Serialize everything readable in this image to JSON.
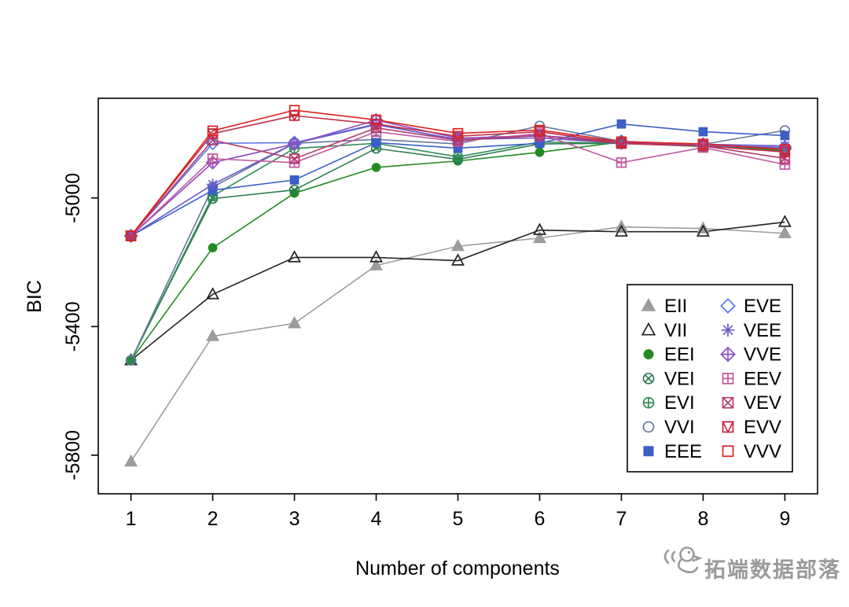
{
  "watermark": {
    "text": "拓端数据部落"
  },
  "chart_data": {
    "type": "line",
    "title": "",
    "xlabel": "Number of components",
    "ylabel": "BIC",
    "x": [
      1,
      2,
      3,
      4,
      5,
      6,
      7,
      8,
      9
    ],
    "xticks": [
      1,
      2,
      3,
      4,
      5,
      6,
      7,
      8,
      9
    ],
    "yticks": [
      -5800,
      -5400,
      -5000
    ],
    "xlim": [
      0.6,
      9.4
    ],
    "ylim": [
      -5920,
      -4690
    ],
    "grid": false,
    "legend_position": "inside-bottom-right",
    "legend_columns": 2,
    "series": [
      {
        "name": "EII",
        "color": "#9C9C9C",
        "marker": "triangle-filled",
        "values": [
          -5820,
          -5430,
          -5390,
          -5210,
          -5150,
          -5125,
          -5090,
          -5095,
          -5110
        ]
      },
      {
        "name": "VII",
        "color": "#222222",
        "marker": "triangle-open",
        "values": [
          -5505,
          -5300,
          -5185,
          -5185,
          -5195,
          -5100,
          -5105,
          -5105,
          -5075
        ]
      },
      {
        "name": "EEI",
        "color": "#228B22",
        "marker": "circle-filled",
        "values": [
          -5505,
          -5155,
          -4985,
          -4905,
          -4885,
          -4858,
          -4826,
          -4840,
          -4850
        ]
      },
      {
        "name": "VEI",
        "color": "#2E7D52",
        "marker": "circle-x",
        "values": [
          -5505,
          -5002,
          -4975,
          -4846,
          -4880,
          -4832,
          -4830,
          -4840,
          -4848
        ]
      },
      {
        "name": "EVI",
        "color": "#2E8B57",
        "marker": "circle-plus",
        "values": [
          -5505,
          -4994,
          -4846,
          -4830,
          -4872,
          -4826,
          -4830,
          -4838,
          -4854
        ]
      },
      {
        "name": "VVI",
        "color": "#66789B",
        "marker": "circle-open",
        "values": [
          -5505,
          -4966,
          -4830,
          -4818,
          -4832,
          -4776,
          -4824,
          -4833,
          -4790
        ]
      },
      {
        "name": "EEE",
        "color": "#3C5FC6",
        "marker": "square-filled",
        "values": [
          -5118,
          -4976,
          -4944,
          -4828,
          -4845,
          -4830,
          -4770,
          -4794,
          -4806
        ]
      },
      {
        "name": "EVE",
        "color": "#5878E8",
        "marker": "diamond-open",
        "values": [
          -5118,
          -4830,
          -4828,
          -4770,
          -4820,
          -4806,
          -4824,
          -4838,
          -4842
        ]
      },
      {
        "name": "VEE",
        "color": "#6A5ACD",
        "marker": "asterisk",
        "values": [
          -5118,
          -4958,
          -4830,
          -4772,
          -4818,
          -4813,
          -4830,
          -4833,
          -4838
        ]
      },
      {
        "name": "VVE",
        "color": "#8E4FC0",
        "marker": "diamond-plus",
        "values": [
          -5118,
          -4890,
          -4832,
          -4758,
          -4814,
          -4806,
          -4829,
          -4833,
          -4847
        ]
      },
      {
        "name": "EEV",
        "color": "#C0579F",
        "marker": "square-plus",
        "values": [
          -5118,
          -4878,
          -4890,
          -4794,
          -4824,
          -4800,
          -4890,
          -4843,
          -4896
        ]
      },
      {
        "name": "VEV",
        "color": "#B43A6C",
        "marker": "square-x",
        "values": [
          -5118,
          -4820,
          -4878,
          -4782,
          -4820,
          -4806,
          -4831,
          -4838,
          -4877
        ]
      },
      {
        "name": "EVV",
        "color": "#C22B45",
        "marker": "square-triangle",
        "values": [
          -5118,
          -4800,
          -4744,
          -4770,
          -4808,
          -4794,
          -4830,
          -4838,
          -4857
        ]
      },
      {
        "name": "VVV",
        "color": "#E0201B",
        "marker": "square-open",
        "values": [
          -5118,
          -4791,
          -4727,
          -4757,
          -4799,
          -4789,
          -4825,
          -4832,
          -4849
        ]
      }
    ]
  }
}
